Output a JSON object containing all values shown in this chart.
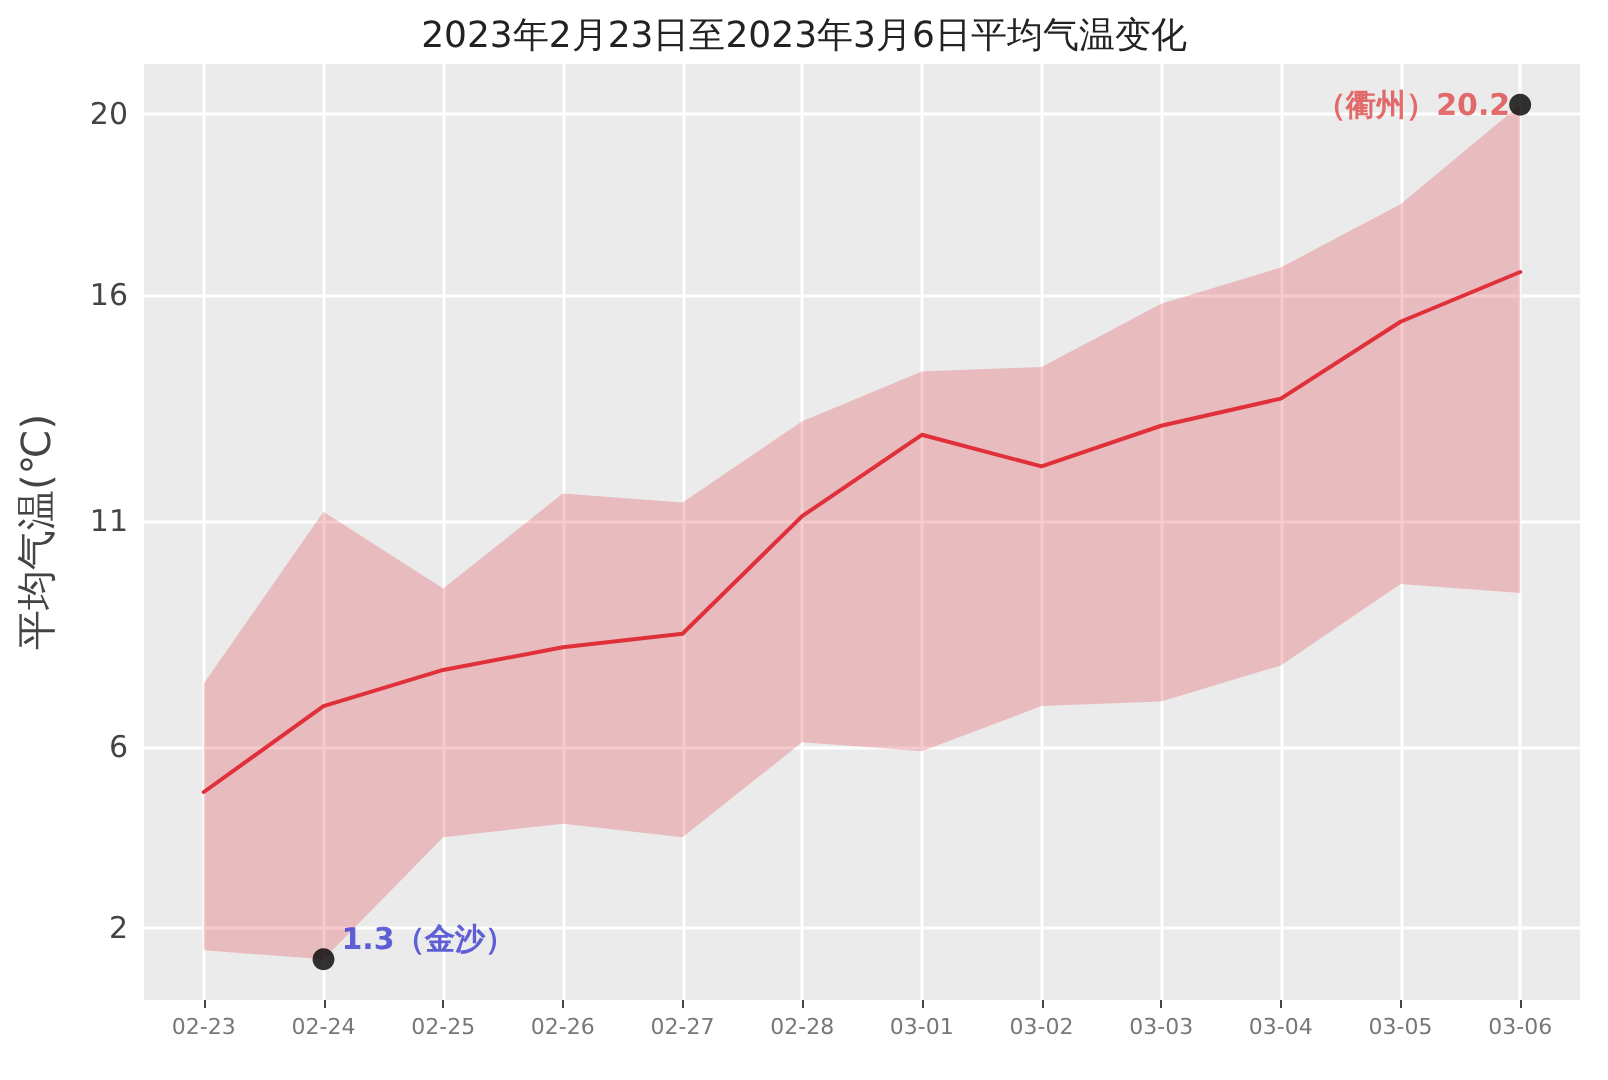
{
  "chart_data": {
    "type": "line",
    "title": "2023年2月23日至2023年3月6日平均气温变化",
    "ylabel": "平均气温(℃)",
    "categories": [
      "02-23",
      "02-24",
      "02-25",
      "02-26",
      "02-27",
      "02-28",
      "03-01",
      "03-02",
      "03-03",
      "03-04",
      "03-05",
      "03-06"
    ],
    "series": [
      {
        "color": "#e0303a",
        "values": [
          5.0,
          6.9,
          7.7,
          8.2,
          8.5,
          11.1,
          12.9,
          12.2,
          13.1,
          13.7,
          15.4,
          16.5
        ],
        "lower": [
          1.5,
          1.3,
          4.0,
          4.3,
          4.0,
          6.1,
          5.9,
          6.9,
          7.0,
          7.8,
          9.6,
          9.4
        ],
        "upper": [
          7.4,
          11.2,
          9.5,
          11.6,
          11.4,
          13.2,
          14.3,
          14.4,
          15.8,
          16.6,
          18.0,
          20.2
        ]
      },
      {
        "type": "scatter",
        "marker": "circle",
        "color": "#000000",
        "x": [
          "02-24",
          "03-06"
        ],
        "values": [
          1.3,
          20.2
        ]
      }
    ],
    "annotations": [
      {
        "text": "1.3（金沙）",
        "x": "02-24",
        "y": 1.3
      },
      {
        "text": "（衢州）20.2",
        "x": "03-06",
        "y": 20.2
      }
    ],
    "ylim": [
      0.4,
      21.1
    ],
    "yticks": [
      2,
      6,
      11,
      16,
      20
    ],
    "grid": true
  }
}
